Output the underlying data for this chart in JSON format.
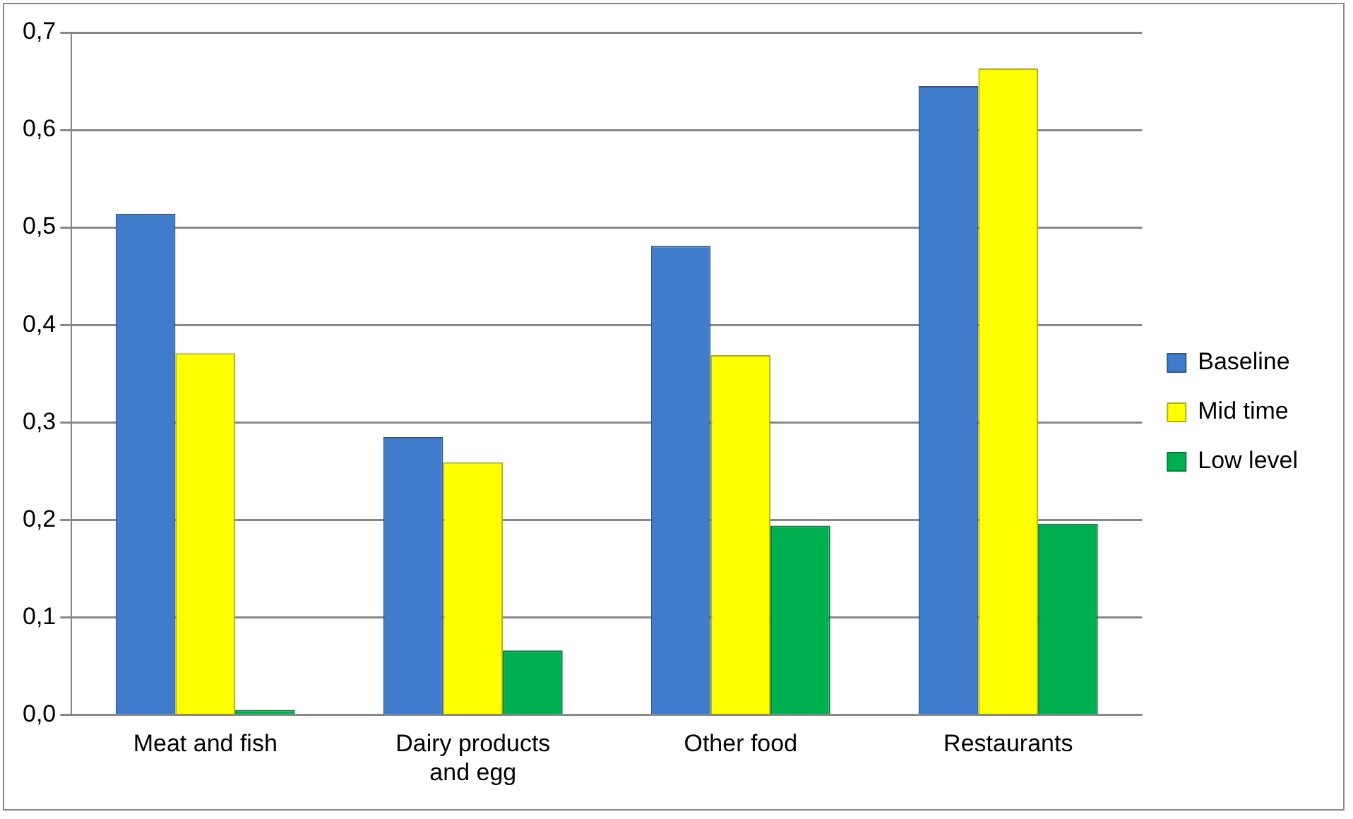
{
  "chart_data": {
    "type": "bar",
    "categories": [
      "Meat and fish",
      "Dairy products and egg",
      "Other food",
      "Restaurants"
    ],
    "series": [
      {
        "name": "Baseline",
        "color": "#3f7ccc",
        "values": [
          0.514,
          0.285,
          0.481,
          0.645
        ]
      },
      {
        "name": "Mid time",
        "color": "#ffff00",
        "values": [
          0.371,
          0.259,
          0.369,
          0.663
        ]
      },
      {
        "name": "Low level",
        "color": "#00b050",
        "values": [
          0.005,
          0.066,
          0.194,
          0.196
        ]
      }
    ],
    "ylim": [
      0,
      0.7
    ],
    "yticks": [
      {
        "value": 0,
        "label": "0,0"
      },
      {
        "value": 0.1,
        "label": "0,1"
      },
      {
        "value": 0.2,
        "label": "0,2"
      },
      {
        "value": 0.3,
        "label": "0,3"
      },
      {
        "value": 0.4,
        "label": "0,4"
      },
      {
        "value": 0.5,
        "label": "0,5"
      },
      {
        "value": 0.6,
        "label": "0,6"
      },
      {
        "value": 0.7,
        "label": "0,7"
      }
    ],
    "grid": "y",
    "legend": "right"
  }
}
